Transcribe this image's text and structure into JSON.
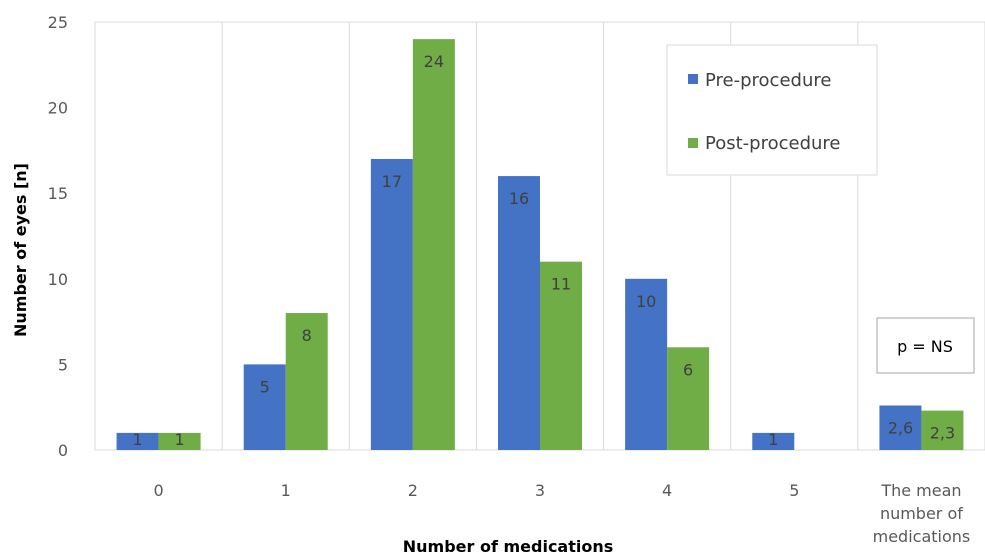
{
  "chart_data": {
    "type": "bar",
    "categories": [
      "0",
      "1",
      "2",
      "3",
      "4",
      "5",
      "The mean number of medications"
    ],
    "category_lines": [
      [
        "0"
      ],
      [
        "1"
      ],
      [
        "2"
      ],
      [
        "3"
      ],
      [
        "4"
      ],
      [
        "5"
      ],
      [
        "The mean",
        "number of",
        "medications"
      ]
    ],
    "series": [
      {
        "name": "Pre-procedure",
        "color": "#4472c4",
        "values": [
          1,
          5,
          17,
          16,
          10,
          1,
          2.6
        ],
        "labels": [
          "1",
          "5",
          "17",
          "16",
          "10",
          "1",
          "2,6"
        ]
      },
      {
        "name": "Post-procedure",
        "color": "#70ad47",
        "values": [
          1,
          8,
          24,
          11,
          6,
          null,
          2.3
        ],
        "labels": [
          "1",
          "8",
          "24",
          "11",
          "6",
          "",
          "2,3"
        ]
      }
    ],
    "xlabel": "Number of medications",
    "ylabel": "Number of eyes [n]",
    "ylim": [
      0,
      25
    ],
    "yticks": [
      "0",
      "5",
      "10",
      "15",
      "20",
      "25"
    ],
    "annotation": "p = NS",
    "grid": "vertical",
    "legend_position": "top-right"
  }
}
